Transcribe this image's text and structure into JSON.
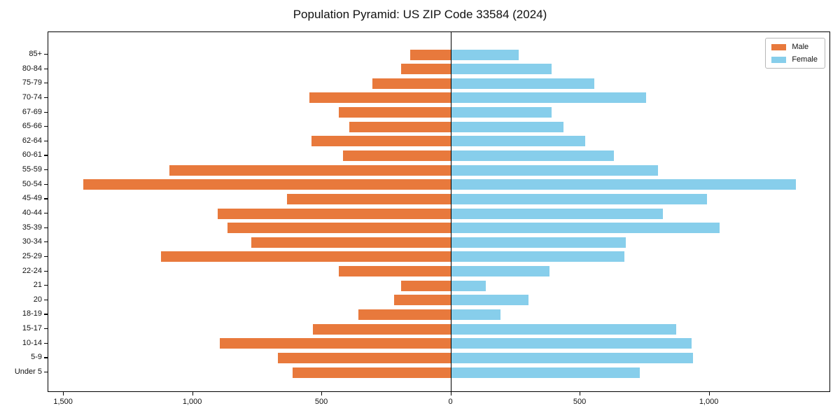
{
  "title": "Population Pyramid: US ZIP Code 33584 (2024)",
  "legend": {
    "male_label": "Male",
    "female_label": "Female"
  },
  "colors": {
    "male": "#e8793c",
    "female": "#87ceeb",
    "axis": "#000000",
    "background": "#ffffff",
    "legend_border": "#b7b7b7"
  },
  "chart_data": {
    "type": "bar",
    "subtype": "population-pyramid",
    "title": "Population Pyramid: US ZIP Code 33584 (2024)",
    "xlabel": "",
    "ylabel": "",
    "grid": false,
    "legend_position": "upper right",
    "xlim": [
      -1560,
      1470
    ],
    "categories": [
      "85+",
      "80-84",
      "75-79",
      "70-74",
      "67-69",
      "65-66",
      "62-64",
      "60-61",
      "55-59",
      "50-54",
      "45-49",
      "40-44",
      "35-39",
      "30-34",
      "25-29",
      "22-24",
      "21",
      "20",
      "18-19",
      "15-17",
      "10-14",
      "5-9",
      "Under 5"
    ],
    "series": [
      {
        "name": "Male",
        "side": "left",
        "color": "#e8793c",
        "values": [
          160,
          195,
          305,
          550,
          435,
          395,
          540,
          420,
          1090,
          1425,
          635,
          905,
          865,
          775,
          1125,
          435,
          195,
          220,
          360,
          535,
          895,
          670,
          615
        ]
      },
      {
        "name": "Female",
        "side": "right",
        "color": "#87ceeb",
        "values": [
          260,
          390,
          555,
          755,
          390,
          435,
          520,
          630,
          800,
          1335,
          990,
          820,
          1040,
          675,
          670,
          380,
          135,
          300,
          190,
          870,
          930,
          935,
          730
        ]
      }
    ],
    "x_ticks": [
      {
        "value": -1500,
        "label": "1,500"
      },
      {
        "value": -1000,
        "label": "1,000"
      },
      {
        "value": -500,
        "label": "500"
      },
      {
        "value": 0,
        "label": "0"
      },
      {
        "value": 500,
        "label": "500"
      },
      {
        "value": 1000,
        "label": "1,000"
      }
    ]
  }
}
